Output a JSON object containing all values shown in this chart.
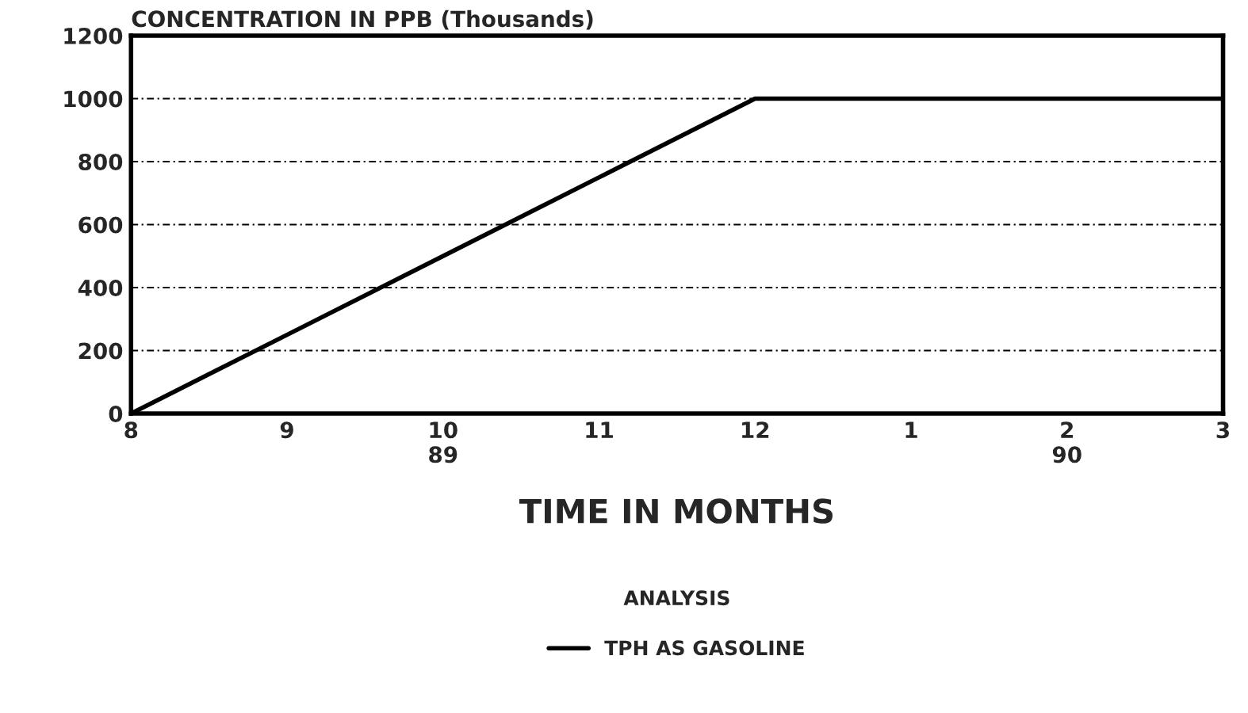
{
  "chart_data": {
    "type": "line",
    "title": "CONCENTRATION IN PPB (Thousands)",
    "xlabel": "TIME IN MONTHS",
    "legend_title": "ANALYSIS",
    "categories": [
      "8",
      "9",
      "10\n89",
      "11",
      "12",
      "1",
      "2\n90",
      "3"
    ],
    "series": [
      {
        "name": "TPH AS GASOLINE",
        "color": "#000000",
        "values": [
          0,
          250,
          500,
          750,
          1000,
          1000,
          1000,
          1000
        ]
      }
    ],
    "ylim": [
      0,
      1200
    ],
    "yticks": [
      0,
      200,
      400,
      600,
      800,
      1000,
      1200
    ],
    "grid": "y",
    "legend": "bottom",
    "marker": "none",
    "line_style": "solid"
  }
}
